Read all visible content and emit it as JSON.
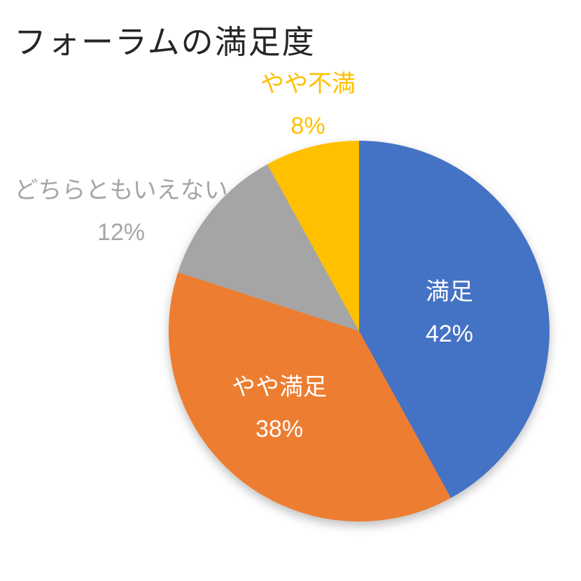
{
  "page": {
    "background": "#FFFFFF"
  },
  "chart_data": {
    "type": "pie",
    "title": "フォーラムの満足度",
    "title_color": "#262626",
    "categories": [
      "満足",
      "やや満足",
      "どちらともいえない",
      "やや不満"
    ],
    "values": [
      42,
      38,
      12,
      8
    ],
    "value_labels": [
      "42%",
      "38%",
      "12%",
      "8%"
    ],
    "colors": [
      "#4472C4",
      "#ED7D31",
      "#A5A5A5",
      "#FFC000"
    ],
    "label_placement": [
      "inside",
      "inside",
      "outside",
      "outside"
    ],
    "label_text_colors": [
      "#FFFFFF",
      "#FFFFFF",
      "#A6A6A6",
      "#FFC000"
    ],
    "start_angle_deg": 0,
    "direction": "clockwise",
    "legend": "none",
    "total": 100
  }
}
